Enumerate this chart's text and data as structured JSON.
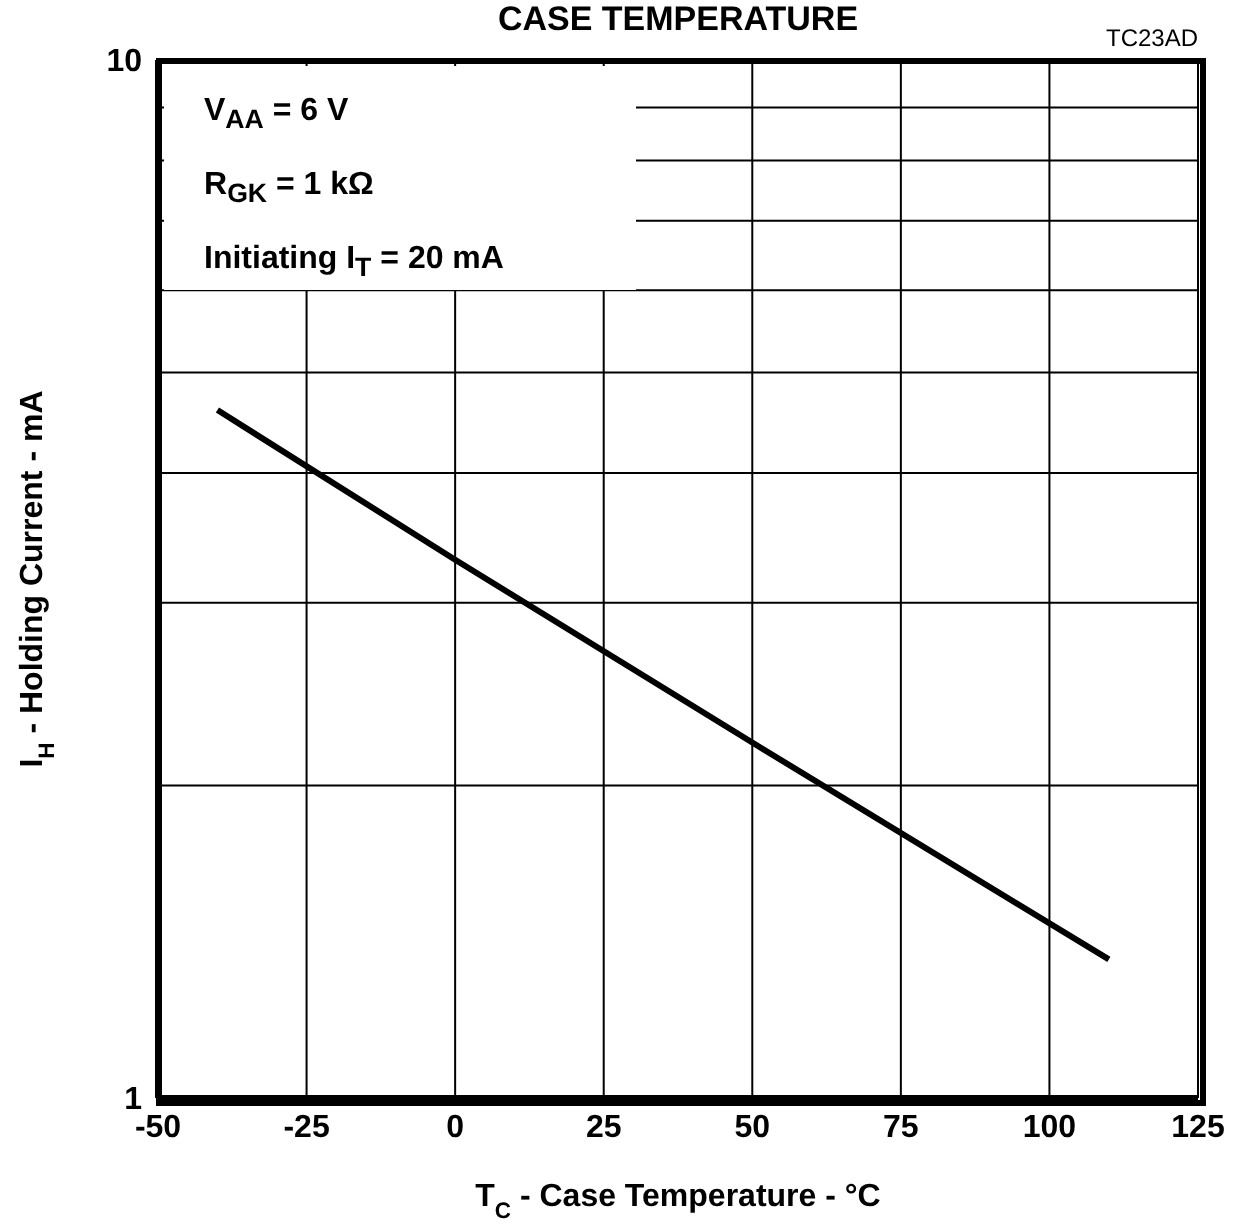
{
  "chart_data": {
    "type": "line",
    "title": "CASE TEMPERATURE",
    "xlabel": "T$_{C}$ - Case Temperature - °C",
    "ylabel": "I$_{H}$ - Holding Current - mA",
    "annotations": [
      "TC23AD",
      "V$_{AA}$ = 6 V",
      "R$_{GK}$ = 1 kΩ",
      "Initiating I$_{T}$ = 20 mA"
    ],
    "x": [
      -40,
      0,
      50,
      110
    ],
    "series": [
      {
        "color": "#000000",
        "values": [
          4.6,
          3.3,
          2.2,
          1.36
        ]
      }
    ],
    "xlim": [
      -50,
      125
    ],
    "xticks": [
      -50,
      -25,
      0,
      25,
      50,
      75,
      100,
      125
    ],
    "ylim": [
      1,
      10
    ],
    "yticks": [
      1,
      {
        "value": 2,
        "label": null
      },
      {
        "value": 3,
        "label": null
      },
      {
        "value": 4,
        "label": null
      },
      {
        "value": 5,
        "label": null
      },
      {
        "value": 6,
        "label": null
      },
      {
        "value": 7,
        "label": null
      },
      {
        "value": 8,
        "label": null
      },
      {
        "value": 9,
        "label": null
      },
      10
    ],
    "log": "y",
    "grid": true,
    "marker": "none",
    "line_style": "solid"
  }
}
